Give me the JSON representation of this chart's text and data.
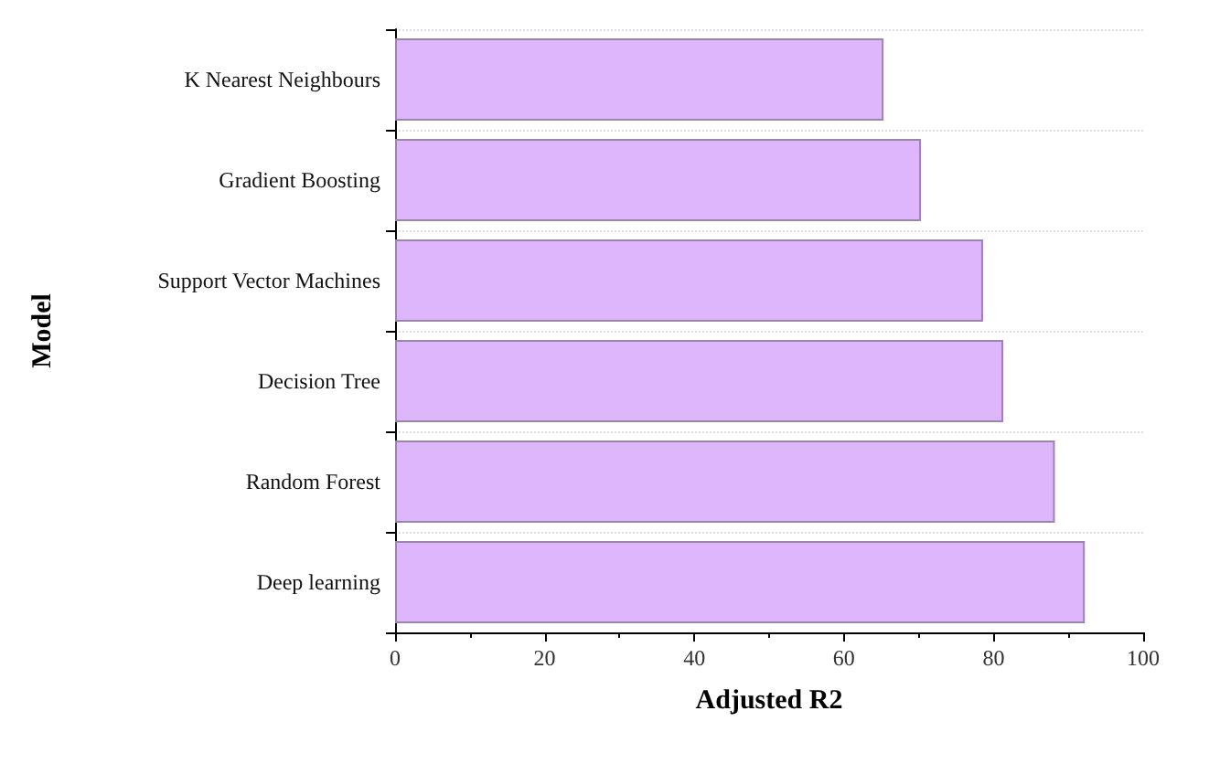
{
  "chart_data": {
    "type": "bar",
    "orientation": "horizontal",
    "xlabel": "Adjusted R2",
    "ylabel": "Model",
    "categories": [
      "K Nearest Neighbours",
      "Gradient Boosting",
      "Support Vector Machines",
      "Decision Tree",
      "Random Forest",
      "Deep learning"
    ],
    "values": [
      65.3,
      70.3,
      78.6,
      81.3,
      88.2,
      92.2
    ],
    "color": "#deb6fc",
    "xlim": [
      0,
      100
    ],
    "xticks": [
      0,
      20,
      40,
      60,
      80,
      100
    ],
    "grid": "y"
  }
}
